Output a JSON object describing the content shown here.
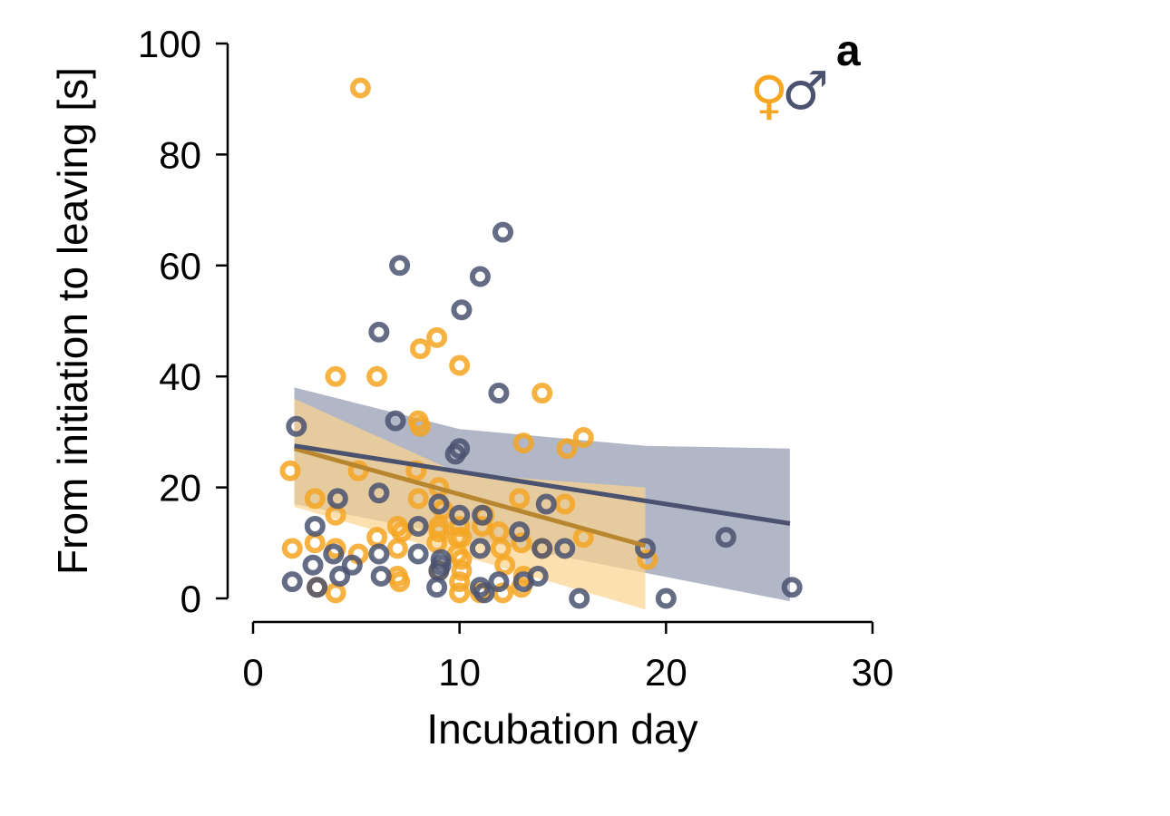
{
  "chart_data": {
    "type": "scatter",
    "panel_label": "a",
    "xlabel": "Incubation day",
    "ylabel": "From initiation to leaving [s]",
    "xlim": [
      0,
      30
    ],
    "ylim": [
      0,
      100
    ],
    "xticks": [
      0,
      10,
      20,
      30
    ],
    "yticks": [
      0,
      20,
      40,
      60,
      80,
      100
    ],
    "grid": false,
    "legend": {
      "placement": "top-right",
      "symbols": [
        "♀",
        "♂"
      ]
    },
    "series": [
      {
        "symbol": "♀",
        "color": "#f5a623",
        "band_color": "#fbd38d",
        "fit": {
          "x": [
            2,
            19
          ],
          "y": [
            27,
            9.5
          ]
        },
        "ci_lower": {
          "x": [
            2,
            19
          ],
          "y": [
            16.5,
            -2
          ]
        },
        "ci_upper": {
          "x": [
            2,
            10,
            19
          ],
          "y": [
            36,
            22.5,
            20
          ]
        },
        "points": [
          [
            5.2,
            92
          ],
          [
            8.9,
            47
          ],
          [
            8.1,
            45
          ],
          [
            10.0,
            42
          ],
          [
            4.0,
            40
          ],
          [
            6.0,
            40
          ],
          [
            14.0,
            37
          ],
          [
            8.0,
            32
          ],
          [
            8.1,
            31
          ],
          [
            16.0,
            29
          ],
          [
            13.1,
            28
          ],
          [
            15.2,
            27
          ],
          [
            1.8,
            23
          ],
          [
            5.1,
            23
          ],
          [
            7.9,
            23
          ],
          [
            9.0,
            20
          ],
          [
            3.0,
            18
          ],
          [
            8.0,
            18
          ],
          [
            12.9,
            18
          ],
          [
            15.1,
            17
          ],
          [
            9.2,
            16
          ],
          [
            11.2,
            15
          ],
          [
            4.0,
            15
          ],
          [
            7.0,
            13
          ],
          [
            9.0,
            13
          ],
          [
            10.0,
            13
          ],
          [
            11.1,
            13
          ],
          [
            7.2,
            12
          ],
          [
            9.0,
            12
          ],
          [
            11.9,
            12
          ],
          [
            6.0,
            11
          ],
          [
            9.9,
            11
          ],
          [
            16.0,
            11
          ],
          [
            10.1,
            11
          ],
          [
            8.9,
            10
          ],
          [
            3.0,
            10
          ],
          [
            13.0,
            10
          ],
          [
            1.9,
            9
          ],
          [
            4.0,
            9
          ],
          [
            7.0,
            9
          ],
          [
            12.0,
            9
          ],
          [
            14.0,
            9
          ],
          [
            5.1,
            8
          ],
          [
            9.9,
            8
          ],
          [
            10.1,
            7
          ],
          [
            19.1,
            7
          ],
          [
            12.2,
            6
          ],
          [
            9.0,
            5
          ],
          [
            10.1,
            5
          ],
          [
            13.1,
            4
          ],
          [
            7.0,
            4
          ],
          [
            7.1,
            3
          ],
          [
            10.0,
            3
          ],
          [
            3.1,
            2
          ],
          [
            13.0,
            2
          ],
          [
            4.0,
            1
          ],
          [
            10.0,
            1
          ],
          [
            11.0,
            1
          ],
          [
            12.1,
            1
          ]
        ]
      },
      {
        "symbol": "♂",
        "color": "#4a5270",
        "band_color": "#a9afc0",
        "fit": {
          "x": [
            2,
            26
          ],
          "y": [
            27.5,
            13.5
          ]
        },
        "ci_lower": {
          "x": [
            2,
            26
          ],
          "y": [
            17,
            -0.5
          ]
        },
        "ci_upper": {
          "x": [
            2,
            10,
            19,
            26
          ],
          "y": [
            38,
            30.5,
            27.5,
            27
          ]
        },
        "points": [
          [
            12.1,
            66
          ],
          [
            7.1,
            60
          ],
          [
            11.0,
            58
          ],
          [
            10.1,
            52
          ],
          [
            6.1,
            48
          ],
          [
            11.9,
            37
          ],
          [
            2.1,
            31
          ],
          [
            6.9,
            32
          ],
          [
            10.0,
            27
          ],
          [
            9.8,
            26
          ],
          [
            6.1,
            19
          ],
          [
            4.1,
            18
          ],
          [
            9.0,
            17
          ],
          [
            14.2,
            17
          ],
          [
            10.0,
            15
          ],
          [
            11.1,
            15
          ],
          [
            3.0,
            13
          ],
          [
            8.0,
            13
          ],
          [
            12.9,
            12
          ],
          [
            22.9,
            11
          ],
          [
            11.0,
            9
          ],
          [
            14.0,
            9
          ],
          [
            15.1,
            9
          ],
          [
            19.0,
            9
          ],
          [
            3.9,
            8
          ],
          [
            6.1,
            8
          ],
          [
            8.0,
            8
          ],
          [
            9.1,
            7
          ],
          [
            2.9,
            6
          ],
          [
            4.8,
            6
          ],
          [
            9.1,
            6
          ],
          [
            9.0,
            5
          ],
          [
            4.2,
            4
          ],
          [
            6.2,
            4
          ],
          [
            13.8,
            4
          ],
          [
            1.9,
            3
          ],
          [
            11.9,
            3
          ],
          [
            13.1,
            3
          ],
          [
            3.1,
            2
          ],
          [
            8.9,
            2
          ],
          [
            11.0,
            2
          ],
          [
            26.1,
            2
          ],
          [
            11.2,
            1
          ],
          [
            15.8,
            0
          ],
          [
            20.0,
            0
          ]
        ]
      }
    ]
  }
}
